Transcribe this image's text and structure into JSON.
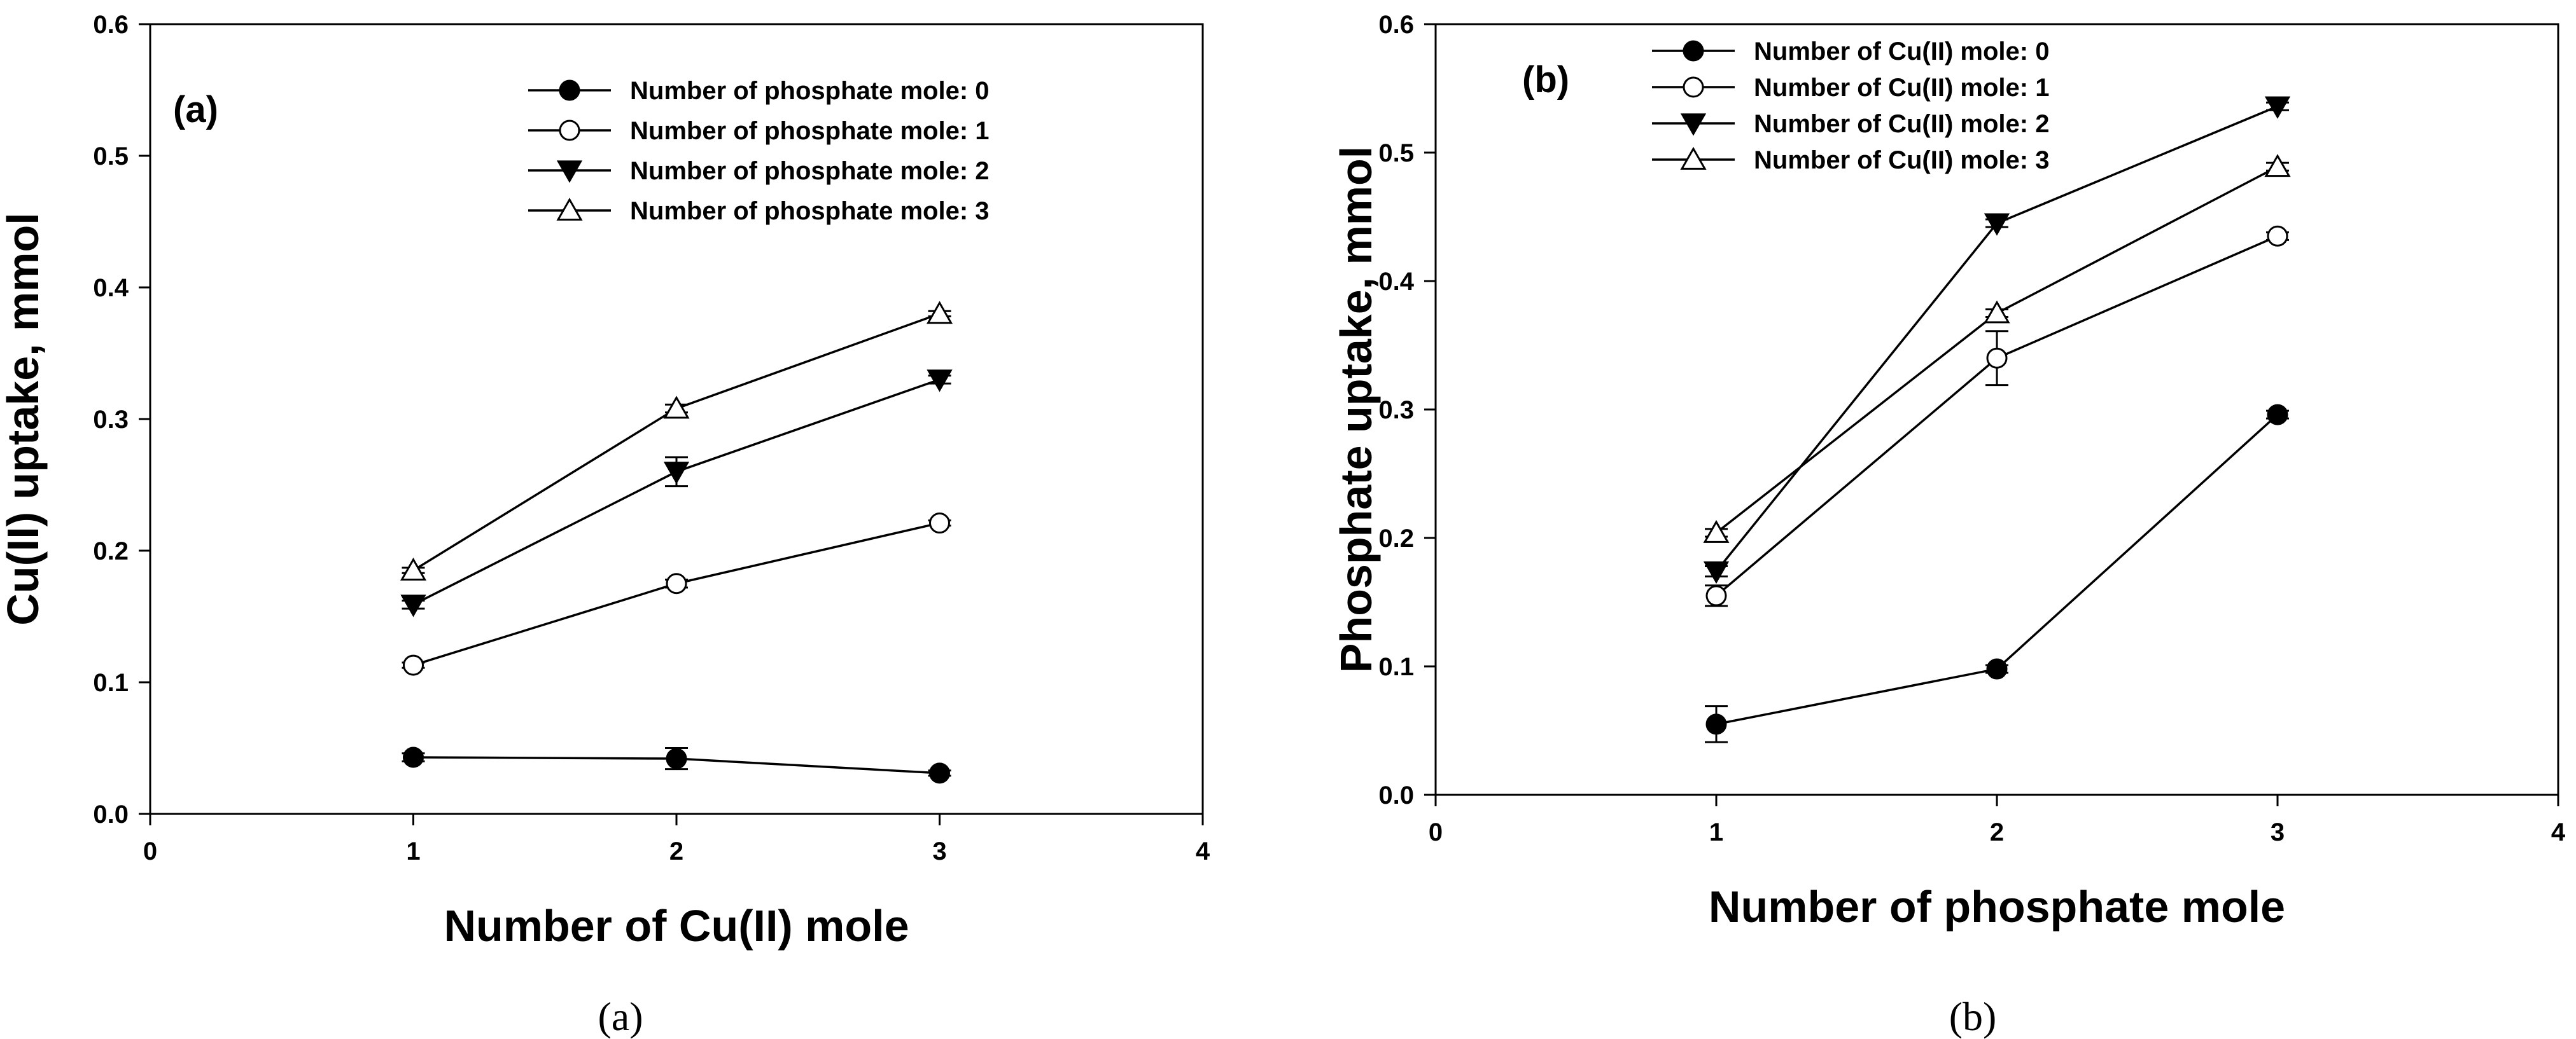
{
  "captions": [
    "(a)",
    "(b)"
  ],
  "chart_data": [
    {
      "type": "line",
      "panel_label": "(a)",
      "xlabel": "Number of Cu(II) mole",
      "ylabel": "Cu(II) uptake, mmol",
      "xlim": [
        0,
        4
      ],
      "ylim": [
        0,
        0.6
      ],
      "xticks": [
        "0",
        "1",
        "2",
        "3",
        "4"
      ],
      "yticks": [
        "0.0",
        "0.1",
        "0.2",
        "0.3",
        "0.4",
        "0.5",
        "0.6"
      ],
      "xtick_values": [
        0,
        1,
        2,
        3,
        4
      ],
      "ytick_values": [
        0,
        0.1,
        0.2,
        0.3,
        0.4,
        0.5,
        0.6
      ],
      "legend_position": "top-right",
      "grid": false,
      "x": [
        1,
        2,
        3
      ],
      "series": [
        {
          "name": "Number of phosphate mole: 0",
          "marker": "filled-circle",
          "values": [
            0.043,
            0.042,
            0.031
          ],
          "errors": [
            0.003,
            0.008,
            0.002
          ]
        },
        {
          "name": "Number of phosphate mole: 1",
          "marker": "open-circle",
          "values": [
            0.113,
            0.175,
            0.221
          ],
          "errors": [
            0.002,
            0.003,
            0.002
          ]
        },
        {
          "name": "Number of phosphate mole: 2",
          "marker": "filled-triangle-down",
          "values": [
            0.159,
            0.26,
            0.33
          ],
          "errors": [
            0.003,
            0.011,
            0.003
          ]
        },
        {
          "name": "Number of phosphate mole: 3",
          "marker": "open-triangle-up",
          "values": [
            0.185,
            0.308,
            0.38
          ],
          "errors": [
            0.002,
            0.003,
            0.002
          ]
        }
      ]
    },
    {
      "type": "line",
      "panel_label": "(b)",
      "xlabel": "Number of phosphate mole",
      "ylabel": "Phosphate uptake, mmol",
      "xlim": [
        0,
        4
      ],
      "ylim": [
        0,
        0.6
      ],
      "xticks": [
        "0",
        "1",
        "2",
        "3",
        "4"
      ],
      "yticks": [
        "0.0",
        "0.1",
        "0.2",
        "0.3",
        "0.4",
        "0.5",
        "0.6"
      ],
      "xtick_values": [
        0,
        1,
        2,
        3,
        4
      ],
      "ytick_values": [
        0,
        0.1,
        0.2,
        0.3,
        0.4,
        0.5,
        0.6
      ],
      "legend_position": "top-left",
      "grid": false,
      "x": [
        1,
        2,
        3
      ],
      "series": [
        {
          "name": "Number of Cu(II) mole: 0",
          "marker": "filled-circle",
          "values": [
            0.055,
            0.098,
            0.296
          ],
          "errors": [
            0.014,
            0.003,
            0.003
          ]
        },
        {
          "name": "Number of Cu(II) mole: 1",
          "marker": "open-circle",
          "values": [
            0.155,
            0.34,
            0.435
          ],
          "errors": [
            0.008,
            0.021,
            0.003
          ]
        },
        {
          "name": "Number of Cu(II) mole: 2",
          "marker": "filled-triangle-down",
          "values": [
            0.174,
            0.445,
            0.536
          ],
          "errors": [
            0.004,
            0.003,
            0.003
          ]
        },
        {
          "name": "Number of Cu(II) mole: 3",
          "marker": "open-triangle-up",
          "values": [
            0.204,
            0.375,
            0.489
          ],
          "errors": [
            0.003,
            0.003,
            0.003
          ]
        }
      ]
    }
  ]
}
